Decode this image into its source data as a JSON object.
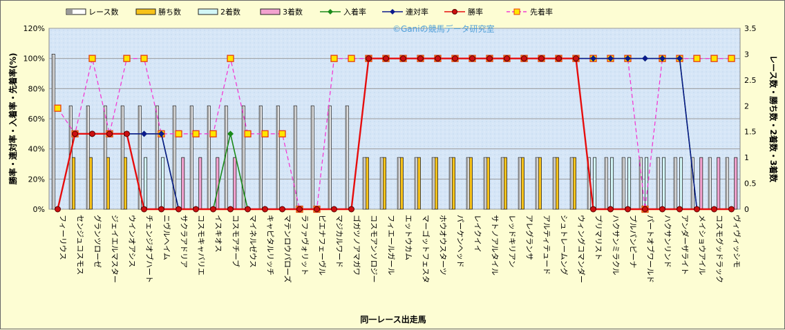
{
  "chart_data": {
    "type": "bar+line",
    "watermark": "©Ganiの競馬データ研究室",
    "xlabel": "同一レース出走馬",
    "ylabel_left": "勝率・連対率・入着率・先着率(%)",
    "ylabel_right": "レース数・勝ち数・2着数・3着数",
    "yleft_ticks": [
      "0%",
      "20%",
      "40%",
      "60%",
      "80%",
      "100%",
      "120%"
    ],
    "yright_ticks": [
      "0",
      "0.5",
      "1",
      "1.5",
      "2",
      "2.5",
      "3",
      "3.5"
    ],
    "ylim_left": [
      0,
      120
    ],
    "ylim_right": [
      0,
      3.5
    ],
    "categories": [
      "フィーリウス",
      "センジュコスモス",
      "グランツローゼ",
      "ジェイエルマスター",
      "ウインオアシス",
      "チェンジオブハート",
      "ニヴルヘイム",
      "サクラアドリア",
      "コスモキャバリエ",
      "イスキオス",
      "コスモアチーブ",
      "マイネルゼウス",
      "キャピタルリッチ",
      "マテンロウパローズ",
      "ラファヴォリット",
      "ピエナフェーヴル",
      "マジカルワード",
      "ゴガツノアマガワ",
      "コスモアンソロジー",
      "フィエールガール",
      "エットウカム",
      "マーゴットフェスタ",
      "ホウオウスターツ",
      "パーケンヘッド",
      "レイクイイ",
      "サトノアルタイル",
      "レッドキリアン",
      "アレグランサ",
      "アルティテュード",
      "シュトレームング",
      "ウィングコマンダー",
      "プリマリスト",
      "ハクサンミラクル",
      "プルパンピーナ",
      "パートオブワールド",
      "ハクサンリンド",
      "アンダーザライト",
      "メイショウアイル",
      "コスモグッドラック",
      "ヴィヴィッシモ"
    ],
    "series": [
      {
        "name": "レース数",
        "axis": "right",
        "kind": "bar",
        "color": "#ffffff",
        "values": [
          3,
          2,
          2,
          2,
          2,
          2,
          2,
          2,
          2,
          2,
          2,
          2,
          2,
          2,
          2,
          2,
          2,
          2,
          1,
          1,
          1,
          1,
          1,
          1,
          1,
          1,
          1,
          1,
          1,
          1,
          1,
          1,
          1,
          1,
          1,
          1,
          1,
          1,
          1,
          1
        ]
      },
      {
        "name": "勝ち数",
        "axis": "right",
        "kind": "bar",
        "color": "#f7c21a",
        "values": [
          0,
          1,
          1,
          1,
          1,
          0,
          0,
          0,
          0,
          0,
          0,
          0,
          0,
          0,
          0,
          0,
          0,
          0,
          1,
          1,
          1,
          1,
          1,
          1,
          1,
          1,
          1,
          1,
          1,
          1,
          1,
          0,
          0,
          0,
          0,
          0,
          0,
          0,
          0,
          0
        ]
      },
      {
        "name": "2着数",
        "axis": "right",
        "kind": "bar",
        "color": "#d2f6f6",
        "values": [
          0,
          0,
          0,
          0,
          0,
          1,
          1,
          0,
          0,
          0,
          0,
          0,
          0,
          0,
          0,
          0,
          0,
          0,
          0,
          0,
          0,
          0,
          0,
          0,
          0,
          0,
          0,
          0,
          0,
          0,
          0,
          1,
          1,
          1,
          1,
          1,
          1,
          0,
          0,
          0
        ]
      },
      {
        "name": "3着数",
        "axis": "right",
        "kind": "bar",
        "color": "#f2a2cf",
        "values": [
          0,
          0,
          0,
          0,
          0,
          0,
          0,
          1,
          1,
          1,
          1,
          0,
          0,
          0,
          0,
          0,
          0,
          0,
          0,
          0,
          0,
          0,
          0,
          0,
          0,
          0,
          0,
          0,
          0,
          0,
          0,
          0,
          0,
          0,
          0,
          0,
          0,
          1,
          1,
          1
        ]
      },
      {
        "name": "入着率",
        "axis": "left",
        "kind": "line",
        "color": "#1a8a1a",
        "marker": "diamond",
        "values": [
          0,
          50,
          50,
          50,
          50,
          50,
          50,
          0,
          0,
          0,
          50,
          0,
          0,
          0,
          0,
          0,
          0,
          0,
          100,
          100,
          100,
          100,
          100,
          100,
          100,
          100,
          100,
          100,
          100,
          100,
          100,
          100,
          100,
          100,
          100,
          100,
          100,
          0,
          0,
          0
        ]
      },
      {
        "name": "連対率",
        "axis": "left",
        "kind": "line",
        "color": "#0b1a8c",
        "marker": "diamond",
        "values": [
          0,
          50,
          50,
          50,
          50,
          50,
          50,
          0,
          0,
          0,
          0,
          0,
          0,
          0,
          0,
          0,
          0,
          0,
          100,
          100,
          100,
          100,
          100,
          100,
          100,
          100,
          100,
          100,
          100,
          100,
          100,
          100,
          100,
          100,
          100,
          100,
          100,
          0,
          0,
          0
        ]
      },
      {
        "name": "勝率",
        "axis": "left",
        "kind": "line",
        "color": "#e60d0d",
        "marker": "circle",
        "values": [
          0,
          50,
          50,
          50,
          50,
          0,
          0,
          0,
          0,
          0,
          0,
          0,
          0,
          0,
          0,
          0,
          0,
          0,
          100,
          100,
          100,
          100,
          100,
          100,
          100,
          100,
          100,
          100,
          100,
          100,
          100,
          0,
          0,
          0,
          0,
          0,
          0,
          0,
          0,
          0
        ]
      },
      {
        "name": "先着率",
        "axis": "left",
        "kind": "line",
        "color": "#f23ad3",
        "marker": "square",
        "dashed": true,
        "values": [
          67,
          50,
          100,
          50,
          100,
          100,
          50,
          50,
          50,
          50,
          100,
          50,
          50,
          50,
          0,
          0,
          100,
          100,
          100,
          100,
          100,
          100,
          100,
          100,
          100,
          100,
          100,
          100,
          100,
          100,
          100,
          100,
          100,
          100,
          0,
          100,
          100,
          100,
          100,
          100
        ]
      }
    ],
    "legend": "top",
    "grid": true
  }
}
